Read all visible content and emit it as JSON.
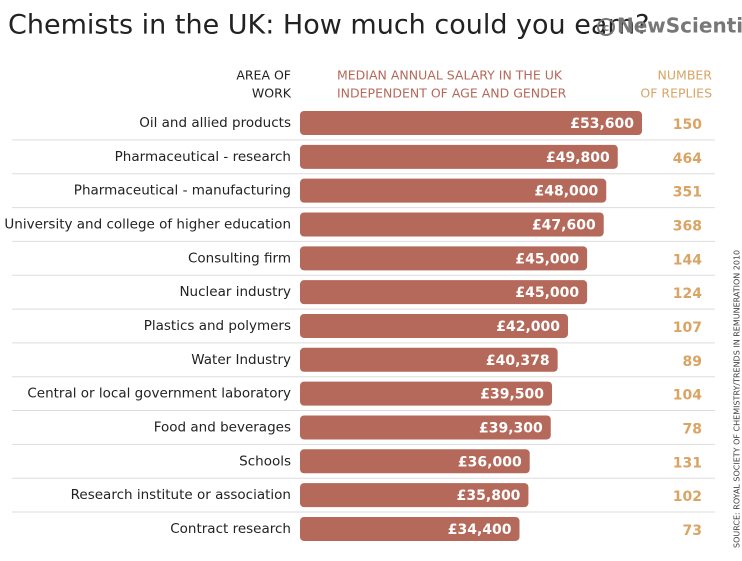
{
  "chart_data": {
    "type": "bar",
    "title": "Chemists in the UK: How much could you earn?",
    "brand": "NewScientist",
    "category_header": [
      "AREA OF",
      "WORK"
    ],
    "value_header": [
      "MEDIAN ANNUAL SALARY IN THE UK",
      "INDEPENDENT OF AGE AND GENDER"
    ],
    "replies_header": [
      "NUMBER",
      "OF REPLIES"
    ],
    "source": "SOURCE: ROYAL SOCIETY OF CHEMISTRY/TRENDS IN REMUNERATION 2010",
    "color": "#b5695a",
    "categories": [
      "Oil and allied products",
      "Pharmaceutical - research",
      "Pharmaceutical - manufacturing",
      "University and college of higher education",
      "Consulting firm",
      "Nuclear industry",
      "Plastics and polymers",
      "Water Industry",
      "Central or local government laboratory",
      "Food and beverages",
      "Schools",
      "Research institute or association",
      "Contract research"
    ],
    "values": [
      53600,
      49800,
      48000,
      47600,
      45000,
      45000,
      42000,
      40378,
      39500,
      39300,
      36000,
      35800,
      34400
    ],
    "value_labels": [
      "£53,600",
      "£49,800",
      "£48,000",
      "£47,600",
      "£45,000",
      "£45,000",
      "£42,000",
      "£40,378",
      "£39,500",
      "£39,300",
      "£36,000",
      "£35,800",
      "£34,400"
    ],
    "replies": [
      150,
      464,
      351,
      368,
      144,
      124,
      107,
      89,
      104,
      78,
      131,
      102,
      73
    ]
  }
}
